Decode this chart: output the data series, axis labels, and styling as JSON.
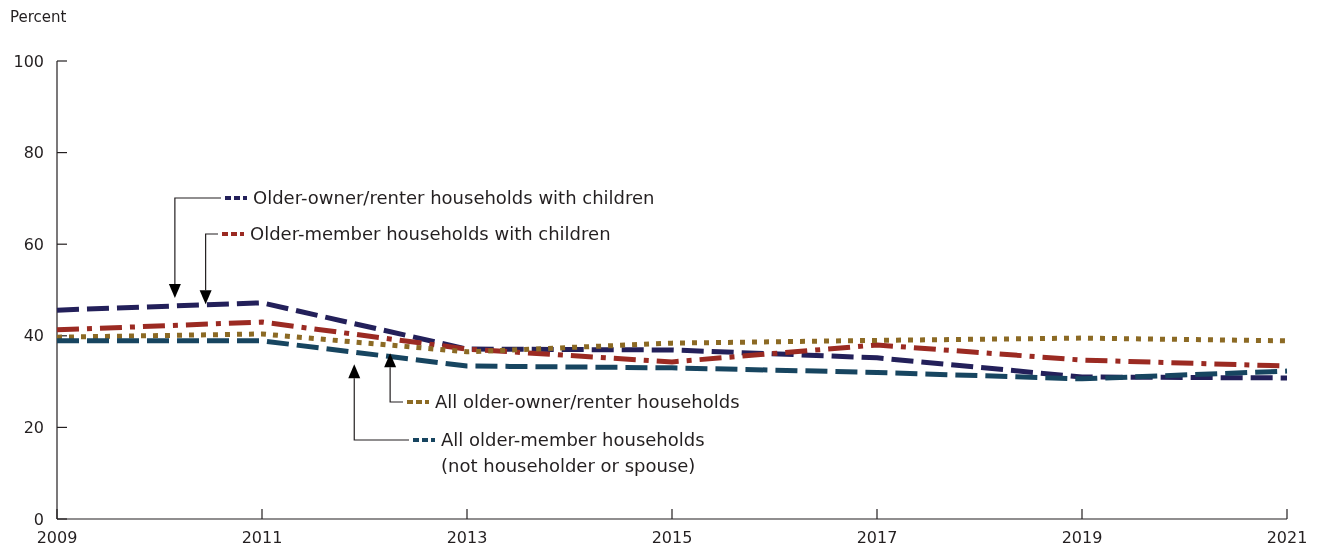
{
  "chart_data": {
    "type": "line",
    "ylabel": "Percent",
    "x": [
      2009,
      2011,
      2013,
      2015,
      2017,
      2019,
      2021
    ],
    "xlim": [
      2009,
      2021
    ],
    "xticks": [
      2009,
      2011,
      2013,
      2015,
      2017,
      2019,
      2021
    ],
    "ylim": [
      0,
      100
    ],
    "yticks": [
      0,
      20,
      40,
      60,
      80,
      100
    ],
    "grid": false,
    "legend": "left",
    "series": [
      {
        "name": "Older-owner/renter households with children",
        "color": "#23205a",
        "line_style": "dashed",
        "values": [
          45.6,
          47.2,
          37.1,
          36.9,
          35.2,
          31.0,
          30.8
        ]
      },
      {
        "name": "Older-member households with children",
        "color": "#9b2a22",
        "line_style": "dashdot",
        "values": [
          41.3,
          43.0,
          37.1,
          34.3,
          38.0,
          34.7,
          33.4
        ]
      },
      {
        "name": "All older-owner/renter households",
        "color": "#8c6a24",
        "line_style": "dotted",
        "values": [
          39.7,
          40.4,
          36.5,
          38.4,
          39.0,
          39.5,
          38.9
        ]
      },
      {
        "name": "All older-member households (not householder or spouse)",
        "color": "#174560",
        "line_style": "dashed",
        "values": [
          38.9,
          38.9,
          33.4,
          33.0,
          32.0,
          30.6,
          32.3
        ]
      }
    ]
  }
}
